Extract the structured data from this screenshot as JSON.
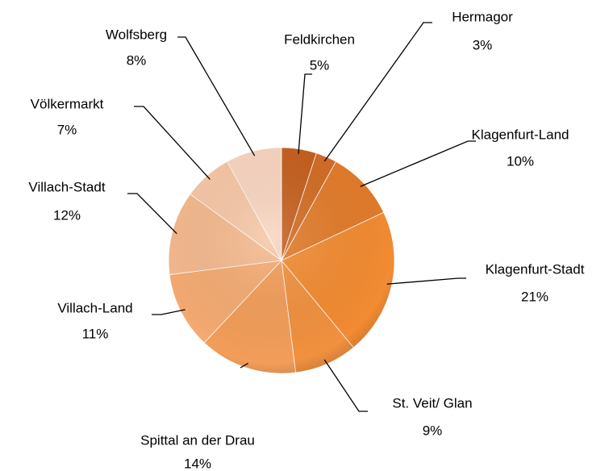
{
  "chart_data": {
    "type": "pie",
    "categories": [
      "Feldkirchen",
      "Hermagor",
      "Klagenfurt-Land",
      "Klagenfurt-Stadt",
      "St. Veit/ Glan",
      "Spittal an der Drau",
      "Villach-Land",
      "Villach-Stadt",
      "Völkermarkt",
      "Wolfsberg"
    ],
    "values": [
      5,
      3,
      10,
      21,
      9,
      14,
      11,
      12,
      7,
      8
    ],
    "value_labels": [
      "5%",
      "3%",
      "10%",
      "21%",
      "9%",
      "14%",
      "11%",
      "12%",
      "7%",
      "8%"
    ],
    "colors": [
      "#c55f1e",
      "#d36c24",
      "#e27b2a",
      "#f28b32",
      "#f1913f",
      "#f39d59",
      "#f5ab72",
      "#f5b98e",
      "#f7c7a6",
      "#f9d5c0"
    ]
  }
}
